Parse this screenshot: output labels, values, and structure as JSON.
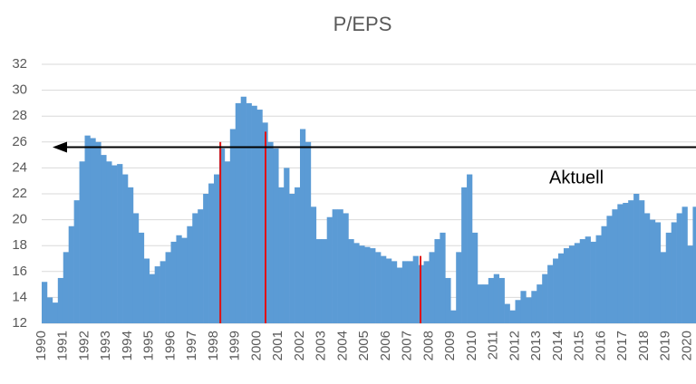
{
  "chart_data": {
    "type": "bar",
    "title": "P/EPS",
    "x": [
      1990,
      1990.25,
      1990.5,
      1990.75,
      1991,
      1991.25,
      1991.5,
      1991.75,
      1992,
      1992.25,
      1992.5,
      1992.75,
      1993,
      1993.25,
      1993.5,
      1993.75,
      1994,
      1994.25,
      1994.5,
      1994.75,
      1995,
      1995.25,
      1995.5,
      1995.75,
      1996,
      1996.25,
      1996.5,
      1996.75,
      1997,
      1997.25,
      1997.5,
      1997.75,
      1998,
      1998.25,
      1998.5,
      1998.75,
      1999,
      1999.25,
      1999.5,
      1999.75,
      2000,
      2000.25,
      2000.5,
      2000.75,
      2001,
      2001.25,
      2001.5,
      2001.75,
      2002,
      2002.25,
      2002.5,
      2002.75,
      2003,
      2003.25,
      2003.5,
      2003.75,
      2004,
      2004.25,
      2004.5,
      2004.75,
      2005,
      2005.25,
      2005.5,
      2005.75,
      2006,
      2006.25,
      2006.5,
      2006.75,
      2007,
      2007.25,
      2007.5,
      2007.75,
      2008,
      2008.25,
      2008.5,
      2008.75,
      2009,
      2009.25,
      2009.5,
      2009.75,
      2010,
      2010.25,
      2010.5,
      2010.75,
      2011,
      2011.25,
      2011.5,
      2011.75,
      2012,
      2012.25,
      2012.5,
      2012.75,
      2013,
      2013.25,
      2013.5,
      2013.75,
      2014,
      2014.25,
      2014.5,
      2014.75,
      2015,
      2015.25,
      2015.5,
      2015.75,
      2016,
      2016.25,
      2016.5,
      2016.75,
      2017,
      2017.25,
      2017.5,
      2017.75,
      2018,
      2018.25,
      2018.5,
      2018.75,
      2019,
      2019.25,
      2019.5,
      2019.75,
      2020,
      2020.25
    ],
    "values": [
      15.2,
      14.0,
      13.6,
      15.5,
      17.5,
      19.5,
      21.5,
      24.5,
      26.5,
      26.3,
      26.0,
      25.0,
      24.5,
      24.2,
      24.3,
      23.5,
      22.5,
      20.5,
      19.0,
      17.0,
      15.8,
      16.4,
      16.8,
      17.5,
      18.3,
      18.8,
      18.6,
      19.5,
      20.5,
      20.8,
      22.0,
      22.8,
      23.5,
      25.5,
      24.5,
      27.0,
      29.0,
      29.5,
      29.0,
      28.8,
      28.5,
      27.5,
      26.0,
      25.5,
      22.5,
      24.0,
      22.0,
      22.5,
      27.0,
      26.0,
      21.0,
      18.5,
      18.5,
      20.2,
      20.8,
      20.8,
      20.5,
      18.5,
      18.2,
      18.0,
      17.9,
      17.8,
      17.5,
      17.2,
      17.0,
      16.8,
      16.3,
      16.8,
      16.8,
      17.2,
      16.5,
      16.8,
      17.5,
      18.5,
      19.0,
      15.5,
      13.0,
      17.5,
      22.5,
      23.5,
      19.0,
      15.0,
      15.0,
      15.5,
      15.8,
      15.5,
      13.5,
      13.0,
      13.8,
      14.5,
      14.0,
      14.5,
      15.0,
      15.8,
      16.5,
      17.0,
      17.4,
      17.8,
      18.0,
      18.2,
      18.5,
      18.7,
      18.3,
      18.8,
      19.5,
      20.3,
      20.8,
      21.2,
      21.3,
      21.5,
      22.0,
      21.5,
      20.5,
      20.0,
      19.8,
      17.5,
      19.0,
      19.8,
      20.5,
      21.0,
      18.0,
      21.0
    ],
    "color": "#5b9bd5",
    "highlights": {
      "x": [
        1998.3,
        2000.4,
        2007.6
      ],
      "values": [
        26.0,
        26.8,
        17.2
      ],
      "color": "#e01010"
    },
    "annotation": {
      "text": "Aktuell",
      "value": 25.6
    },
    "xlim": [
      1990,
      2020.4
    ],
    "xticks": [
      1990,
      1991,
      1992,
      1993,
      1994,
      1995,
      1996,
      1997,
      1998,
      1999,
      2000,
      2001,
      2002,
      2003,
      2004,
      2005,
      2006,
      2007,
      2008,
      2009,
      2010,
      2011,
      2012,
      2013,
      2014,
      2015,
      2016,
      2017,
      2018,
      2019,
      2020
    ],
    "ylim": [
      12,
      32
    ],
    "yticks": [
      12,
      14,
      16,
      18,
      20,
      22,
      24,
      26,
      28,
      30,
      32
    ],
    "grid": true
  }
}
